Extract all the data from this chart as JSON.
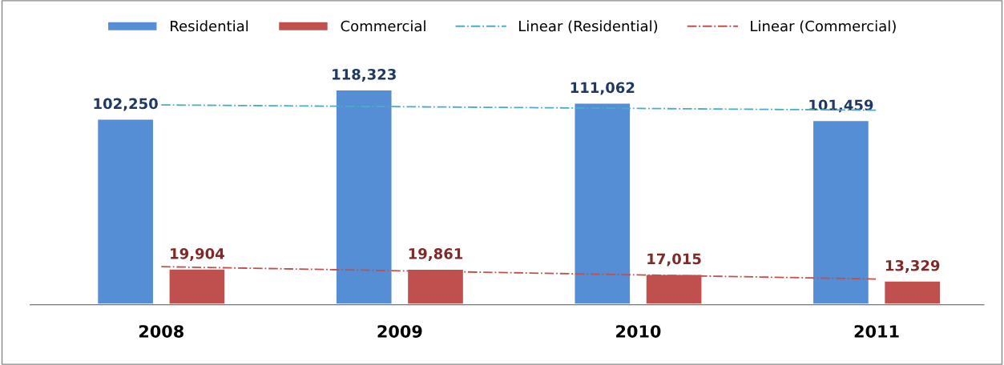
{
  "chart_data": {
    "type": "bar",
    "categories": [
      "2008",
      "2009",
      "2010",
      "2011"
    ],
    "series": [
      {
        "name": "Residential",
        "color": "#558ed5",
        "values": [
          102250,
          118323,
          111062,
          101459
        ],
        "value_labels": [
          "102,250",
          "118,323",
          "111,062",
          "101,459"
        ]
      },
      {
        "name": "Commercial",
        "color": "#c0504d",
        "values": [
          19904,
          19861,
          17015,
          13329
        ],
        "value_labels": [
          "19,904",
          "19,861",
          "17,015",
          "13,329"
        ]
      },
      {
        "name": "Linear (Residential)",
        "type": "line",
        "line_style": "dashdot",
        "color": "#4bacc6",
        "values": [
          109718.6,
          108755.2,
          107791.8,
          106828.4
        ]
      },
      {
        "name": "Linear (Commercial)",
        "type": "line",
        "line_style": "dashdot",
        "color": "#c0504d",
        "values": [
          20913.9,
          18656.8,
          16399.7,
          14142.6
        ]
      }
    ],
    "legend": "top",
    "marker": "none",
    "tick_labels": "x"
  }
}
